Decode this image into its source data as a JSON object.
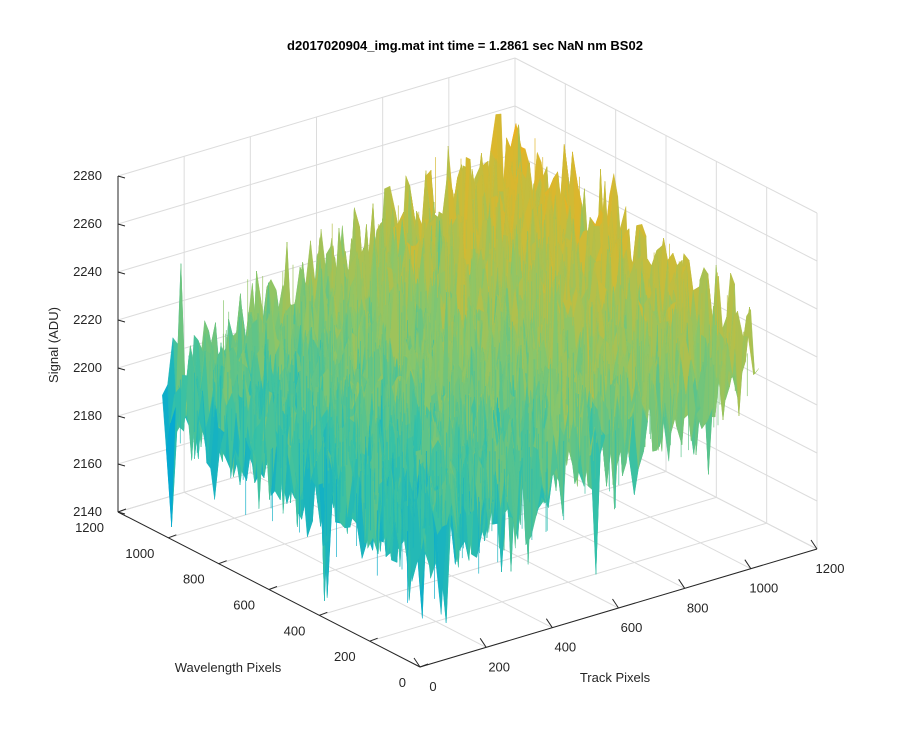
{
  "chart_data": {
    "type": "surface",
    "title": "d2017020904_img.mat int time = 1.2861 sec  NaN nm BS02",
    "xlabel": "Track Pixels",
    "ylabel": "Wavelength Pixels",
    "zlabel": "Signal (ADU)",
    "xlim": [
      0,
      1200
    ],
    "ylim": [
      0,
      1200
    ],
    "zlim": [
      2140,
      2280
    ],
    "xticks": [
      "0",
      "200",
      "400",
      "600",
      "800",
      "1000",
      "1200"
    ],
    "yticks": [
      "0",
      "200",
      "400",
      "600",
      "800",
      "1000",
      "1200"
    ],
    "zticks": [
      "2140",
      "2160",
      "2180",
      "2200",
      "2220",
      "2240",
      "2260",
      "2280"
    ],
    "data_extent": {
      "x": [
        0,
        1024
      ],
      "y": [
        0,
        1024
      ]
    },
    "surface_trend": {
      "corner_x0_y0": 2190,
      "corner_xmax_y0": 2230,
      "corner_x0_ymax": 2200,
      "corner_xmax_ymax": 2250,
      "noise_amplitude": 25
    },
    "colormap": [
      "#0072bd",
      "#00a7d6",
      "#35c1a7",
      "#8ac66a",
      "#c9bc3a",
      "#edb120"
    ],
    "grid": true
  }
}
